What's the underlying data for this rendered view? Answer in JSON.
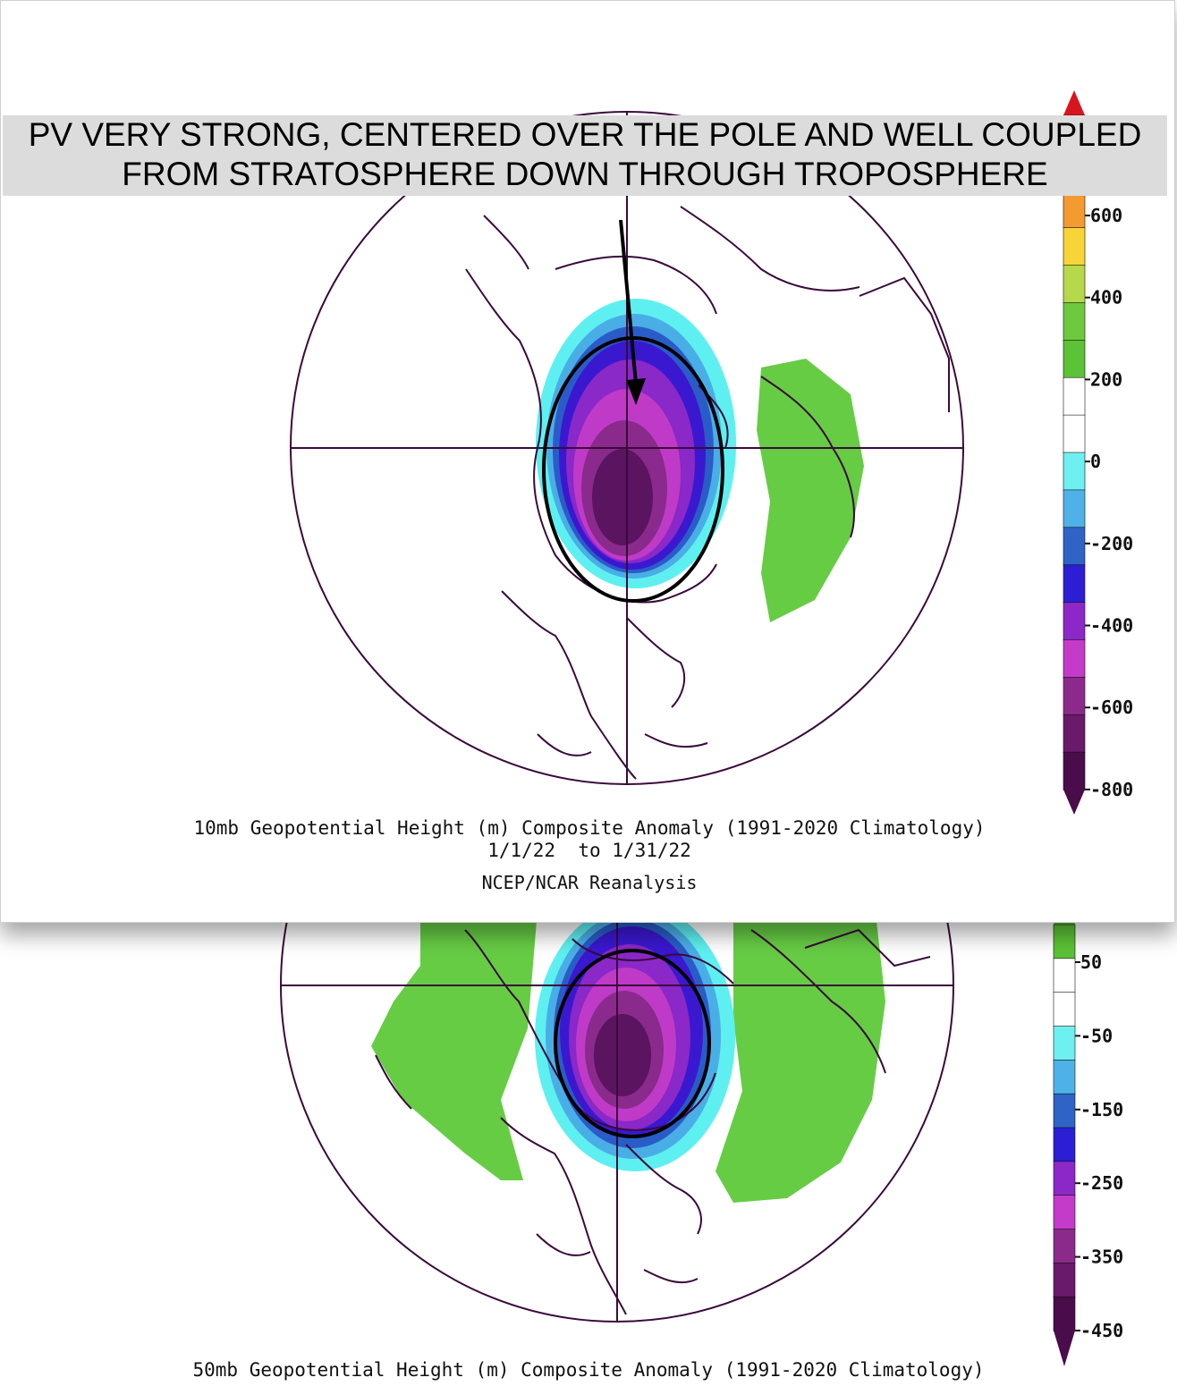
{
  "annotation": {
    "line1": "PV VERY STRONG, CENTERED OVER THE POLE AND WELL COUPLED",
    "line2": "FROM STRATOSPHERE DOWN THROUGH TROPOSPHERE"
  },
  "map_10mb": {
    "title": "10mb Geopotential Height (m) Composite Anomaly (1991-2020 Climatology)",
    "dates": "1/1/22  to 1/31/22",
    "source": "NCEP/NCAR Reanalysis",
    "colorbar_labels": [
      "600",
      "400",
      "200",
      "0",
      "-200",
      "-400",
      "-600",
      "-800"
    ],
    "colorbar_colors": [
      "#d8141e",
      "#ee5a22",
      "#f39a31",
      "#f7d437",
      "#b6d84a",
      "#6fc93e",
      "#5cc236",
      "#ffffff",
      "#ffffff",
      "#6ff0f0",
      "#4eb2e8",
      "#2f63c6",
      "#2b1ed4",
      "#8c28c8",
      "#c43ac9",
      "#8c2a8c",
      "#6a1a6a",
      "#4a0c4a"
    ]
  },
  "map_50mb": {
    "title": "50mb Geopotential Height (m) Composite Anomaly (1991-2020 Climatology)",
    "colorbar_labels": [
      "50",
      "-50",
      "-150",
      "-250",
      "-350",
      "-450"
    ],
    "colorbar_colors": [
      "#5cc236",
      "#ffffff",
      "#ffffff",
      "#6ff0f0",
      "#4eb2e8",
      "#2f63c6",
      "#2b1ed4",
      "#8c28c8",
      "#c43ac9",
      "#8c2a8c",
      "#6a1a6a",
      "#4a0c4a"
    ]
  },
  "colors": {
    "green": "#66cc44",
    "cyan": "#5ef0f0",
    "lightblue": "#4aaee6",
    "blue": "#2a5cc8",
    "indigo": "#3a18d0",
    "violet": "#8a28c8",
    "magenta": "#c03ac8",
    "purple": "#8a2a8c",
    "darkpurple": "#5a1460",
    "coast": "#3a0a3a"
  }
}
